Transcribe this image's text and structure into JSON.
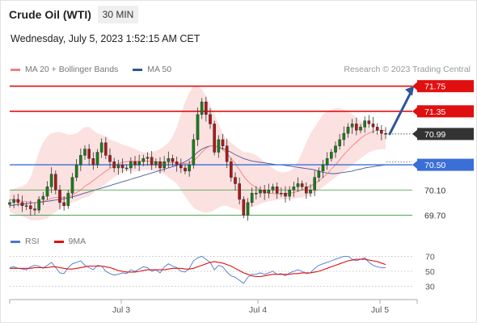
{
  "header": {
    "instrument": "Crude Oil (WTI)",
    "timeframe": "30 MIN",
    "datetime": "Wednesday, July 5, 2023 1:52:15 AM CET"
  },
  "legend_main": [
    {
      "label": "MA 20 + Bollinger Bands",
      "color": "#f08080"
    },
    {
      "label": "MA 50",
      "color": "#2f5597"
    }
  ],
  "credit": "Research © 2023 Trading Central",
  "legend_rsi": [
    {
      "label": "RSI",
      "color": "#4a78d0"
    },
    {
      "label": "9MA",
      "color": "#e01010"
    }
  ],
  "colors": {
    "up": "#1a7f1a",
    "down": "#b01818",
    "resistance": "#e01010",
    "pivot": "#3a6fd8",
    "support": "#3a9a3a",
    "band": "#fbdcdc",
    "ma20": "#f08080",
    "ma50": "#4a5aa0",
    "last": "#333333",
    "arrow": "#2f5597"
  },
  "chart_data": [
    {
      "type": "candlestick",
      "title": "Crude Oil (WTI)",
      "interval": "30 MIN",
      "x_ticks": [
        "Jul 3",
        "Jul 4",
        "Jul 5"
      ],
      "ylim": [
        69.5,
        71.9
      ],
      "levels": [
        {
          "label": "71.75",
          "value": 71.75,
          "kind": "resistance"
        },
        {
          "label": "71.35",
          "value": 71.35,
          "kind": "resistance"
        },
        {
          "label": "70.99",
          "value": 70.99,
          "kind": "last"
        },
        {
          "label": "70.50",
          "value": 70.5,
          "kind": "pivot"
        },
        {
          "label": "70.10",
          "value": 70.1,
          "kind": "support"
        },
        {
          "label": "69.70",
          "value": 69.7,
          "kind": "support"
        }
      ],
      "closes": [
        69.9,
        69.95,
        69.9,
        69.85,
        69.85,
        69.8,
        69.78,
        69.95,
        70.0,
        70.15,
        70.35,
        70.1,
        69.9,
        69.85,
        70.05,
        70.3,
        70.5,
        70.65,
        70.75,
        70.6,
        70.5,
        70.7,
        70.85,
        70.65,
        70.55,
        70.45,
        70.5,
        70.45,
        70.45,
        70.55,
        70.5,
        70.55,
        70.6,
        70.62,
        70.5,
        70.55,
        70.45,
        70.55,
        70.6,
        70.55,
        70.5,
        70.45,
        70.4,
        70.5,
        70.9,
        71.3,
        71.5,
        71.3,
        71.15,
        70.7,
        70.9,
        70.8,
        70.55,
        70.3,
        70.2,
        69.95,
        69.7,
        69.9,
        70.05,
        70.05,
        70.1,
        70.05,
        70.1,
        70.15,
        70.05,
        70.05,
        70.0,
        70.1,
        70.15,
        70.2,
        70.15,
        70.05,
        70.1,
        70.3,
        70.4,
        70.5,
        70.6,
        70.7,
        70.8,
        70.9,
        71.0,
        71.1,
        71.15,
        71.05,
        71.1,
        71.2,
        71.15,
        71.1,
        71.05,
        71.0,
        70.99
      ],
      "ma20": [
        69.95,
        69.94,
        69.93,
        69.92,
        69.92,
        69.9,
        69.9,
        69.91,
        69.92,
        69.94,
        69.97,
        69.98,
        69.98,
        69.98,
        69.99,
        70.02,
        70.06,
        70.1,
        70.16,
        70.2,
        70.25,
        70.3,
        70.35,
        70.4,
        70.44,
        70.48,
        70.52,
        70.54,
        70.55,
        70.56,
        70.56,
        70.56,
        70.56,
        70.56,
        70.55,
        70.55,
        70.54,
        70.53,
        70.53,
        70.53,
        70.53,
        70.52,
        70.52,
        70.53,
        70.56,
        70.62,
        70.7,
        70.76,
        70.8,
        70.8,
        70.78,
        70.74,
        70.68,
        70.6,
        70.52,
        70.42,
        70.32,
        70.24,
        70.18,
        70.14,
        70.1,
        70.07,
        70.05,
        70.04,
        70.04,
        70.04,
        70.04,
        70.05,
        70.06,
        70.08,
        70.1,
        70.13,
        70.16,
        70.2,
        70.24,
        70.3,
        70.36,
        70.43,
        70.5,
        70.58,
        70.66,
        70.73,
        70.8,
        70.86,
        70.92,
        70.97,
        71.0,
        71.03,
        71.05,
        71.05,
        71.04
      ],
      "bb_upper": [
        70.1,
        70.12,
        70.14,
        70.16,
        70.2,
        70.3,
        70.5,
        70.7,
        70.85,
        70.95,
        71.0,
        71.02,
        71.02,
        71.0,
        70.98,
        70.98,
        71.0,
        71.05,
        71.1,
        71.1,
        71.05,
        71.0,
        70.98,
        70.95,
        70.9,
        70.88,
        70.85,
        70.82,
        70.8,
        70.78,
        70.75,
        70.72,
        70.7,
        70.7,
        70.7,
        70.72,
        70.75,
        70.8,
        70.85,
        70.95,
        71.1,
        71.3,
        71.5,
        71.65,
        71.75,
        71.75,
        71.7,
        71.6,
        71.45,
        71.3,
        71.15,
        71.0,
        70.9,
        70.85,
        70.8,
        70.75,
        70.7,
        70.7,
        70.68,
        70.65,
        70.6,
        70.55,
        70.5,
        70.45,
        70.4,
        70.38,
        70.38,
        70.4,
        70.45,
        70.55,
        70.7,
        70.85,
        71.0,
        71.1,
        71.2,
        71.3,
        71.35,
        71.38,
        71.4,
        71.4,
        71.38,
        71.35,
        71.3,
        71.25,
        71.2,
        71.15,
        71.1,
        71.05,
        71.0,
        71.0,
        71.0
      ],
      "bb_lower": [
        69.75,
        69.72,
        69.7,
        69.68,
        69.65,
        69.62,
        69.62,
        69.62,
        69.63,
        69.65,
        69.7,
        69.75,
        69.8,
        69.85,
        69.88,
        69.9,
        69.92,
        69.95,
        69.98,
        70.0,
        70.05,
        70.1,
        70.15,
        70.2,
        70.25,
        70.3,
        70.35,
        70.38,
        70.4,
        70.4,
        70.4,
        70.4,
        70.42,
        70.42,
        70.4,
        70.4,
        70.38,
        70.35,
        70.3,
        70.25,
        70.2,
        70.1,
        70.0,
        69.9,
        69.82,
        69.78,
        69.75,
        69.74,
        69.75,
        69.78,
        69.82,
        69.85,
        69.85,
        69.82,
        69.8,
        69.78,
        69.78,
        69.8,
        69.82,
        69.85,
        69.88,
        69.9,
        69.92,
        69.93,
        69.94,
        69.95,
        69.95,
        69.96,
        69.96,
        69.97,
        69.98,
        70.0,
        70.02,
        70.05,
        70.1,
        70.15,
        70.2,
        70.25,
        70.3,
        70.35,
        70.4,
        70.45,
        70.5,
        70.55,
        70.6,
        70.65,
        70.7,
        70.72,
        70.74,
        70.75,
        70.75
      ],
      "ma50": [
        69.85,
        69.86,
        69.87,
        69.88,
        69.88,
        69.89,
        69.9,
        69.9,
        69.91,
        69.92,
        69.93,
        69.94,
        69.95,
        69.96,
        69.97,
        69.99,
        70.01,
        70.03,
        70.05,
        70.07,
        70.09,
        70.11,
        70.13,
        70.15,
        70.17,
        70.19,
        70.21,
        70.23,
        70.25,
        70.27,
        70.29,
        70.31,
        70.33,
        70.35,
        70.37,
        70.39,
        70.41,
        70.43,
        70.45,
        70.47,
        70.49,
        70.52,
        70.55,
        70.59,
        70.64,
        70.7,
        70.75,
        70.78,
        70.8,
        70.8,
        70.78,
        70.76,
        70.73,
        70.7,
        70.66,
        70.63,
        70.6,
        70.58,
        70.56,
        70.55,
        70.54,
        70.53,
        70.52,
        70.51,
        70.5,
        70.5,
        70.49,
        70.48,
        70.47,
        70.46,
        70.45,
        70.44,
        70.43,
        70.42,
        70.4,
        70.38,
        70.37,
        70.36,
        70.36,
        70.37,
        70.38,
        70.39,
        70.4,
        70.42,
        70.43,
        70.45,
        70.46,
        70.47,
        70.48,
        70.49,
        70.5
      ],
      "projection": {
        "from": 70.99,
        "to": 71.75
      }
    },
    {
      "type": "line",
      "title": "RSI",
      "ylim": [
        22,
        78
      ],
      "y_ticks": [
        70,
        50,
        30
      ],
      "series": [
        {
          "name": "RSI",
          "values": [
            55,
            56,
            54,
            53,
            52,
            56,
            58,
            57,
            54,
            58,
            62,
            55,
            48,
            47,
            55,
            60,
            62,
            64,
            58,
            55,
            52,
            58,
            57,
            50,
            47,
            45,
            46,
            48,
            47,
            52,
            50,
            53,
            56,
            55,
            50,
            52,
            48,
            56,
            60,
            57,
            55,
            50,
            49,
            54,
            64,
            68,
            70,
            66,
            62,
            52,
            58,
            56,
            49,
            44,
            42,
            38,
            34,
            42,
            46,
            46,
            48,
            46,
            48,
            50,
            46,
            47,
            44,
            48,
            50,
            52,
            50,
            47,
            48,
            54,
            58,
            60,
            62,
            64,
            66,
            68,
            70,
            70,
            66,
            64,
            66,
            68,
            62,
            58,
            56,
            55,
            55
          ]
        },
        {
          "name": "9MA",
          "values": [
            54,
            54,
            54,
            54,
            54,
            54,
            55,
            55,
            55,
            55,
            56,
            56,
            55,
            54,
            53,
            53,
            54,
            55,
            56,
            57,
            57,
            57,
            57,
            56,
            55,
            53,
            51,
            50,
            49,
            49,
            49,
            50,
            51,
            52,
            52,
            52,
            52,
            52,
            53,
            54,
            54,
            54,
            53,
            53,
            54,
            56,
            58,
            60,
            62,
            63,
            62,
            61,
            59,
            57,
            54,
            51,
            48,
            46,
            44,
            43,
            43,
            44,
            45,
            46,
            46,
            46,
            46,
            46,
            47,
            47,
            48,
            48,
            48,
            49,
            50,
            52,
            54,
            56,
            58,
            60,
            62,
            64,
            65,
            66,
            66,
            66,
            65,
            64,
            63,
            61,
            59
          ]
        }
      ]
    }
  ]
}
